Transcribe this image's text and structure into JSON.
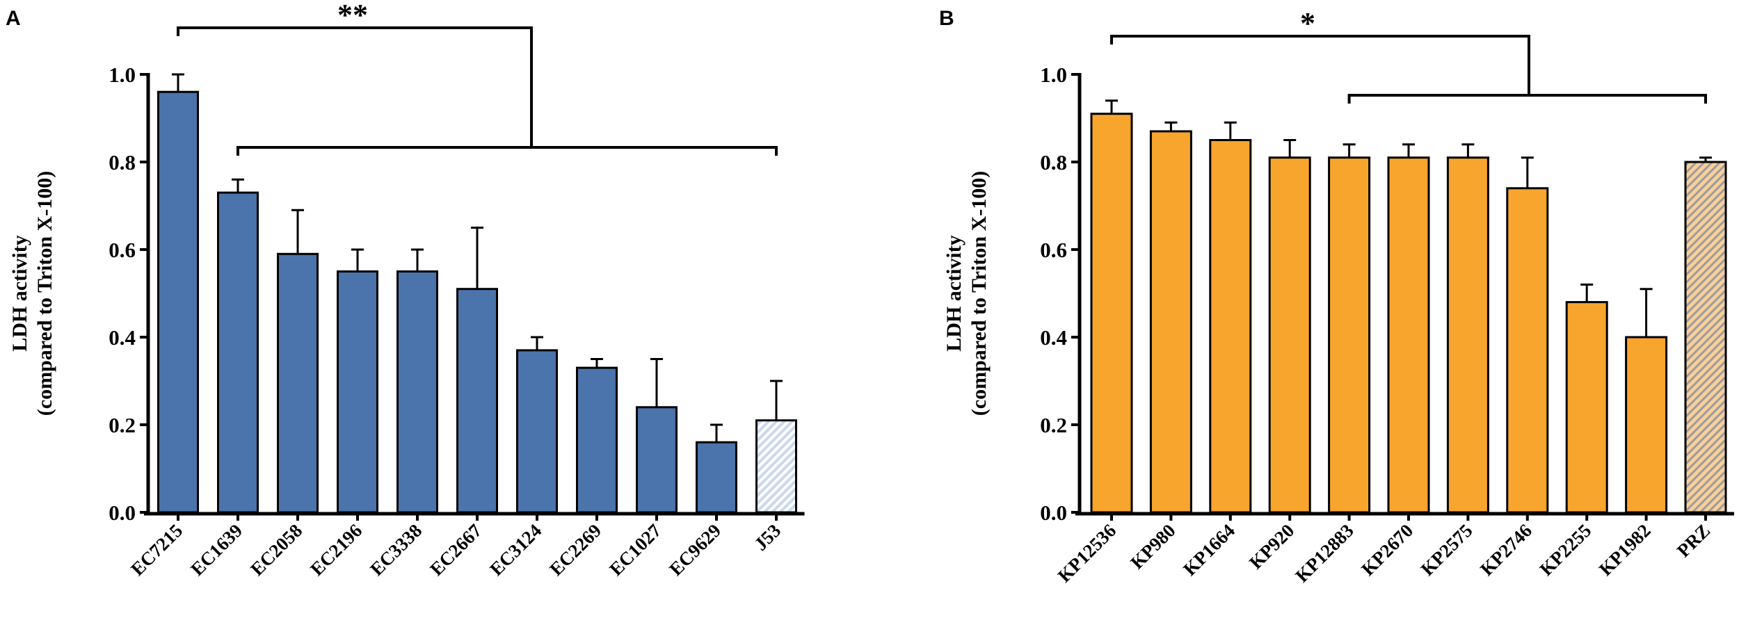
{
  "chart_data": [
    {
      "type": "bar",
      "panel_label": "A",
      "title": "",
      "xlabel": "",
      "ylabel_line1": "LDH activity",
      "ylabel_line2": "(compared to Triton X-100)",
      "ylim": [
        0,
        1.0
      ],
      "yticks": [
        "0.0",
        "0.2",
        "0.4",
        "0.6",
        "0.8",
        "1.0"
      ],
      "categories": [
        "EC7215",
        "EC1639",
        "EC2058",
        "EC2196",
        "EC3338",
        "EC2667",
        "EC3124",
        "EC2269",
        "EC1027",
        "EC9629",
        "J53"
      ],
      "values": [
        0.96,
        0.73,
        0.59,
        0.55,
        0.55,
        0.51,
        0.37,
        0.33,
        0.24,
        0.16,
        0.21
      ],
      "error_upper": [
        1.0,
        0.76,
        0.69,
        0.6,
        0.6,
        0.65,
        0.4,
        0.35,
        0.35,
        0.2,
        0.3
      ],
      "hatched_category": "J53",
      "color": "#4a74ab",
      "hatch_color": "#c9d8ec",
      "significance": {
        "label": "**",
        "group_left": [
          "EC7215"
        ],
        "group_right_from": "EC1639",
        "group_right_to": "J53"
      }
    },
    {
      "type": "bar",
      "panel_label": "B",
      "title": "",
      "xlabel": "",
      "ylabel_line1": "LDH activity",
      "ylabel_line2": "(compared to Triton X-100)",
      "ylim": [
        0,
        1.0
      ],
      "yticks": [
        "0.0",
        "0.2",
        "0.4",
        "0.6",
        "0.8",
        "1.0"
      ],
      "categories": [
        "KP12536",
        "KP980",
        "KP1664",
        "KP920",
        "KP12883",
        "KP2670",
        "KP2575",
        "KP2746",
        "KP2255",
        "KP1982",
        "PRZ"
      ],
      "values": [
        0.91,
        0.87,
        0.85,
        0.81,
        0.81,
        0.81,
        0.81,
        0.74,
        0.48,
        0.4,
        0.8
      ],
      "error_upper": [
        0.94,
        0.89,
        0.89,
        0.85,
        0.84,
        0.84,
        0.84,
        0.81,
        0.52,
        0.51,
        0.81
      ],
      "hatched_category": "PRZ",
      "color": "#f8a52d",
      "hatch_color": "#f9cf9a",
      "significance": {
        "label": "*",
        "group_left": [
          "KP12536"
        ],
        "group_right_from": "KP12883",
        "group_right_to": "PRZ"
      }
    }
  ]
}
